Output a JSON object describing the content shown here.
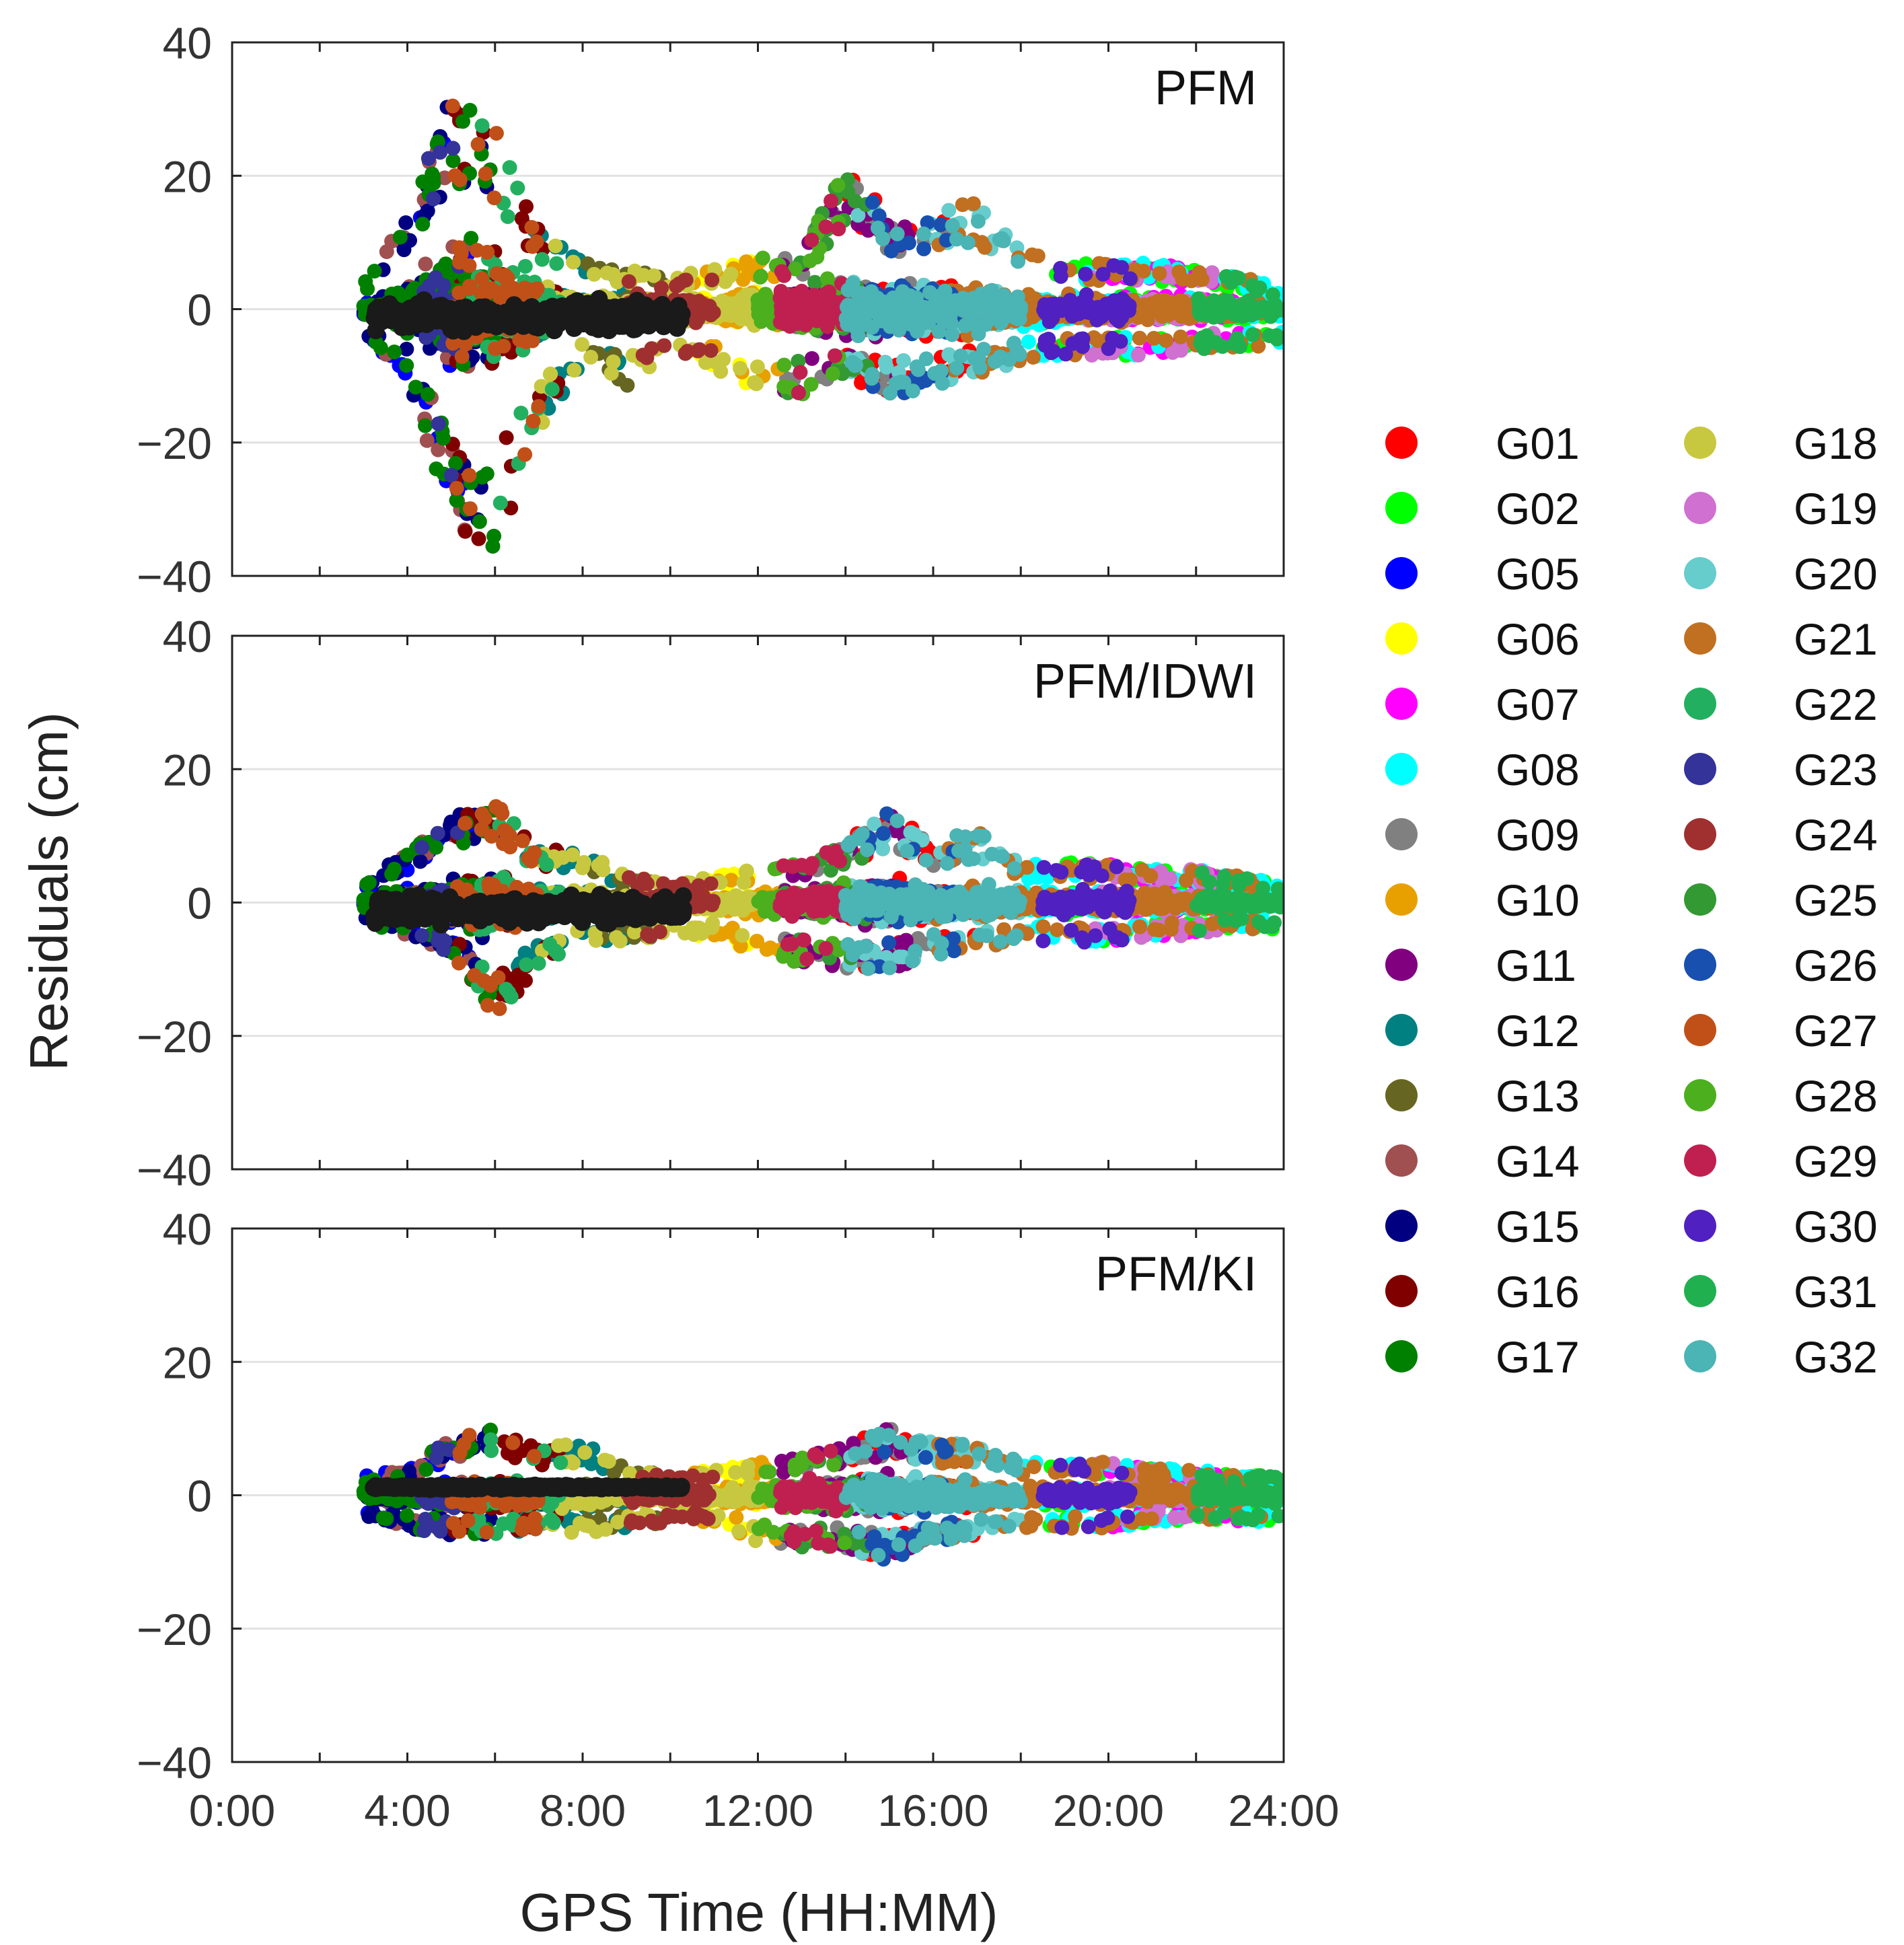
{
  "chart_data": {
    "type": "scatter",
    "xlabel": "GPS Time (HH:MM)",
    "ylabel": "Residuals (cm)",
    "xlim": [
      0,
      24
    ],
    "ylim": [
      -40,
      40
    ],
    "x_tick_labels": [
      "0:00",
      "4:00",
      "8:00",
      "12:00",
      "16:00",
      "20:00",
      "24:00"
    ],
    "y_tick_labels": [
      "40",
      "20",
      "0",
      "−20",
      "−40"
    ],
    "grid": true,
    "legend_position": "right",
    "panels": [
      {
        "title": "PFM",
        "description_envelope": "residual spread per hour",
        "envelope_hours": [
          3,
          4,
          5,
          6,
          7,
          8,
          9,
          10,
          11,
          12,
          13,
          14,
          15,
          16,
          17,
          18,
          19,
          20,
          21,
          22,
          23,
          24
        ],
        "envelope_upper": [
          4,
          15,
          32,
          27,
          12,
          7,
          6,
          5,
          6,
          8,
          8,
          22,
          14,
          15,
          16,
          10,
          7,
          7,
          7,
          6,
          5,
          3
        ],
        "envelope_lower": [
          -4,
          -10,
          -32,
          -37,
          -18,
          -8,
          -12,
          -8,
          -9,
          -12,
          -13,
          -10,
          -13,
          -12,
          -10,
          -8,
          -7,
          -7,
          -7,
          -6,
          -6,
          -5
        ]
      },
      {
        "title": "PFM/IDWI",
        "envelope_hours": [
          3,
          4,
          5,
          6,
          7,
          8,
          9,
          10,
          11,
          12,
          13,
          14,
          15,
          16,
          17,
          18,
          19,
          20,
          21,
          22,
          23,
          24
        ],
        "envelope_upper": [
          3,
          8,
          13,
          15,
          8,
          8,
          4,
          3,
          4,
          5,
          6,
          9,
          14,
          9,
          11,
          6,
          6,
          6,
          5,
          5,
          4,
          3
        ],
        "envelope_lower": [
          -3,
          -5,
          -8,
          -17,
          -10,
          -6,
          -6,
          -5,
          -5,
          -8,
          -9,
          -10,
          -10,
          -8,
          -7,
          -6,
          -6,
          -6,
          -5,
          -5,
          -4,
          -4
        ]
      },
      {
        "title": "PFM/KI",
        "envelope_hours": [
          3,
          4,
          5,
          6,
          7,
          8,
          9,
          10,
          11,
          12,
          13,
          14,
          15,
          16,
          17,
          18,
          19,
          20,
          21,
          22,
          23,
          24
        ],
        "envelope_upper": [
          3,
          4,
          9,
          10,
          7,
          8,
          4,
          3,
          4,
          5,
          6,
          8,
          10,
          8,
          8,
          5,
          5,
          5,
          4,
          4,
          3,
          3
        ],
        "envelope_lower": [
          -3,
          -5,
          -6,
          -6,
          -5,
          -6,
          -5,
          -4,
          -4,
          -7,
          -8,
          -8,
          -10,
          -7,
          -6,
          -5,
          -5,
          -5,
          -4,
          -4,
          -4,
          -4
        ]
      }
    ],
    "series": [
      {
        "name": "G01",
        "color": "#FF0000",
        "visible_hours": [
          14.0,
          17.0
        ]
      },
      {
        "name": "G02",
        "color": "#00FF00",
        "visible_hours": [
          18.5,
          23.8
        ]
      },
      {
        "name": "G05",
        "color": "#0000FF",
        "visible_hours": [
          3.0,
          5.5
        ]
      },
      {
        "name": "G06",
        "color": "#FFFF00",
        "visible_hours": [
          10.5,
          12.0
        ]
      },
      {
        "name": "G07",
        "color": "#FF00FF",
        "visible_hours": [
          20.0,
          23.0
        ]
      },
      {
        "name": "G08",
        "color": "#00FFFF",
        "visible_hours": [
          18.0,
          24.0
        ]
      },
      {
        "name": "G09",
        "color": "#808080",
        "visible_hours": [
          12.5,
          16.5
        ]
      },
      {
        "name": "G10",
        "color": "#E8A000",
        "visible_hours": [
          10.5,
          12.5
        ]
      },
      {
        "name": "G11",
        "color": "#800080",
        "visible_hours": [
          12.5,
          15.5
        ]
      },
      {
        "name": "G12",
        "color": "#008080",
        "visible_hours": [
          6.5,
          9.0
        ]
      },
      {
        "name": "G13",
        "color": "#666622",
        "visible_hours": [
          8.0,
          10.0
        ]
      },
      {
        "name": "G14",
        "color": "#A05050",
        "visible_hours": [
          3.5,
          5.5
        ]
      },
      {
        "name": "G15",
        "color": "#000080",
        "visible_hours": [
          3.0,
          6.0
        ]
      },
      {
        "name": "G16",
        "color": "#800000",
        "visible_hours": [
          5.0,
          7.5
        ]
      },
      {
        "name": "G17",
        "color": "#008000",
        "visible_hours": [
          3.0,
          6.0
        ]
      },
      {
        "name": "G18",
        "color": "#C8C840",
        "visible_hours": [
          7.0,
          12.0
        ]
      },
      {
        "name": "G19",
        "color": "#D070D0",
        "visible_hours": [
          19.5,
          22.5
        ]
      },
      {
        "name": "G20",
        "color": "#66CCCC",
        "visible_hours": [
          14.0,
          18.0
        ]
      },
      {
        "name": "G21",
        "color": "#C07020",
        "visible_hours": [
          16.0,
          23.5
        ]
      },
      {
        "name": "G22",
        "color": "#22B060",
        "visible_hours": [
          5.5,
          7.5
        ]
      },
      {
        "name": "G23",
        "color": "#333399",
        "visible_hours": [
          4.3,
          5.2
        ]
      },
      {
        "name": "G24",
        "color": "#A03030",
        "visible_hours": [
          9.0,
          11.0
        ]
      },
      {
        "name": "G25",
        "color": "#339933",
        "visible_hours": [
          12.5,
          14.5
        ]
      },
      {
        "name": "G26",
        "color": "#1850B0",
        "visible_hours": [
          14.5,
          16.5
        ]
      },
      {
        "name": "G27",
        "color": "#C05018",
        "visible_hours": [
          5.0,
          7.0
        ]
      },
      {
        "name": "G28",
        "color": "#4CAF1E",
        "visible_hours": [
          12.0,
          14.0
        ]
      },
      {
        "name": "G29",
        "color": "#C02050",
        "visible_hours": [
          12.5,
          14.0
        ]
      },
      {
        "name": "G30",
        "color": "#5020C0",
        "visible_hours": [
          18.5,
          20.5
        ]
      },
      {
        "name": "G31",
        "color": "#20B050",
        "visible_hours": [
          22.0,
          24.0
        ]
      },
      {
        "name": "G32",
        "color": "#4BB4B4",
        "visible_hours": [
          14.0,
          18.0
        ]
      },
      {
        "name": "black-track",
        "color": "#1A1A1A",
        "visible_hours": [
          3.2,
          10.3
        ],
        "in_legend": false
      }
    ]
  }
}
